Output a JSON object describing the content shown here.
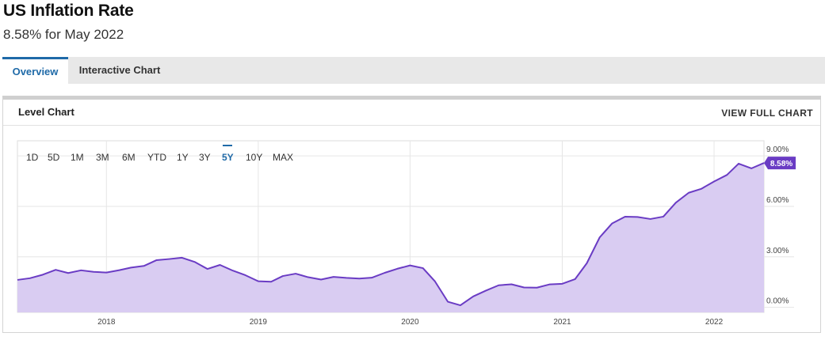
{
  "header": {
    "title": "US Inflation Rate",
    "subtitle": "8.58% for May 2022"
  },
  "tabs": [
    {
      "label": "Overview",
      "active": true
    },
    {
      "label": "Interactive Chart",
      "active": false
    }
  ],
  "card": {
    "title": "Level Chart",
    "view_full_label": "VIEW FULL CHART"
  },
  "range_buttons": [
    "1D",
    "5D",
    "1M",
    "3M",
    "6M",
    "YTD",
    "1Y",
    "3Y",
    "5Y",
    "10Y",
    "MAX"
  ],
  "range_selected": "5Y",
  "colors": {
    "accent": "#1f6aa8",
    "line": "#6a3cc4",
    "fill": "#d9ccf2",
    "badge": "#6a3cc4"
  },
  "chart_data": {
    "type": "area",
    "title": "",
    "xlabel": "",
    "ylabel": "",
    "x_tick_labels": [
      "2018",
      "2019",
      "2020",
      "2021",
      "2022"
    ],
    "y_tick_labels": [
      "0.00%",
      "3.00%",
      "6.00%",
      "9.00%"
    ],
    "ylim": [
      -0.3,
      9.9
    ],
    "grid": true,
    "last_value_label": "8.58%",
    "series": [
      {
        "x": [
          "2017-06",
          "2017-07",
          "2017-08",
          "2017-09",
          "2017-10",
          "2017-11",
          "2017-12",
          "2018-01",
          "2018-02",
          "2018-03",
          "2018-04",
          "2018-05",
          "2018-06",
          "2018-07",
          "2018-08",
          "2018-09",
          "2018-10",
          "2018-11",
          "2018-12",
          "2019-01",
          "2019-02",
          "2019-03",
          "2019-04",
          "2019-05",
          "2019-06",
          "2019-07",
          "2019-08",
          "2019-09",
          "2019-10",
          "2019-11",
          "2019-12",
          "2020-01",
          "2020-02",
          "2020-03",
          "2020-04",
          "2020-05",
          "2020-06",
          "2020-07",
          "2020-08",
          "2020-09",
          "2020-10",
          "2020-11",
          "2020-12",
          "2021-01",
          "2021-02",
          "2021-03",
          "2021-04",
          "2021-05",
          "2021-06",
          "2021-07",
          "2021-08",
          "2021-09",
          "2021-10",
          "2021-11",
          "2021-12",
          "2022-01",
          "2022-02",
          "2022-03",
          "2022-04",
          "2022-05"
        ],
        "values": [
          1.63,
          1.73,
          1.94,
          2.23,
          2.04,
          2.2,
          2.11,
          2.07,
          2.21,
          2.36,
          2.46,
          2.8,
          2.87,
          2.95,
          2.7,
          2.28,
          2.52,
          2.18,
          1.91,
          1.55,
          1.52,
          1.86,
          2.0,
          1.79,
          1.65,
          1.81,
          1.75,
          1.71,
          1.76,
          2.05,
          2.29,
          2.49,
          2.33,
          1.54,
          0.33,
          0.12,
          0.65,
          0.99,
          1.31,
          1.37,
          1.18,
          1.17,
          1.36,
          1.4,
          1.68,
          2.62,
          4.16,
          4.99,
          5.39,
          5.37,
          5.25,
          5.39,
          6.22,
          6.81,
          7.04,
          7.48,
          7.87,
          8.54,
          8.26,
          8.58
        ]
      }
    ]
  }
}
